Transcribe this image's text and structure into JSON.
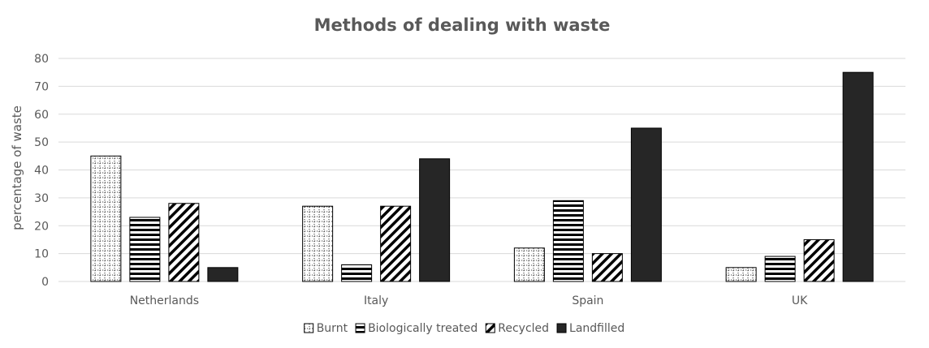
{
  "chart_data": {
    "type": "bar",
    "title": "Methods of dealing with waste",
    "xlabel": "",
    "ylabel": "percentage of waste",
    "ylim": [
      0,
      80
    ],
    "yticks": [
      0,
      10,
      20,
      30,
      40,
      50,
      60,
      70,
      80
    ],
    "categories": [
      "Netherlands",
      "Italy",
      "Spain",
      "UK"
    ],
    "series": [
      {
        "name": "Burnt",
        "pattern": "dots",
        "values": [
          45,
          27,
          12,
          5
        ]
      },
      {
        "name": "Biologically treated",
        "pattern": "horizontal-stripes",
        "values": [
          23,
          6,
          29,
          9
        ]
      },
      {
        "name": "Recycled",
        "pattern": "diagonal-stripes",
        "values": [
          28,
          27,
          10,
          15
        ]
      },
      {
        "name": "Landfilled",
        "pattern": "solid",
        "values": [
          5,
          44,
          55,
          75
        ]
      }
    ],
    "grid": true,
    "legend_position": "bottom",
    "colors": {
      "bar_outline": "#000000",
      "solid_fill": "#262626",
      "grid": "#d9d9d9",
      "text": "#595959"
    }
  }
}
